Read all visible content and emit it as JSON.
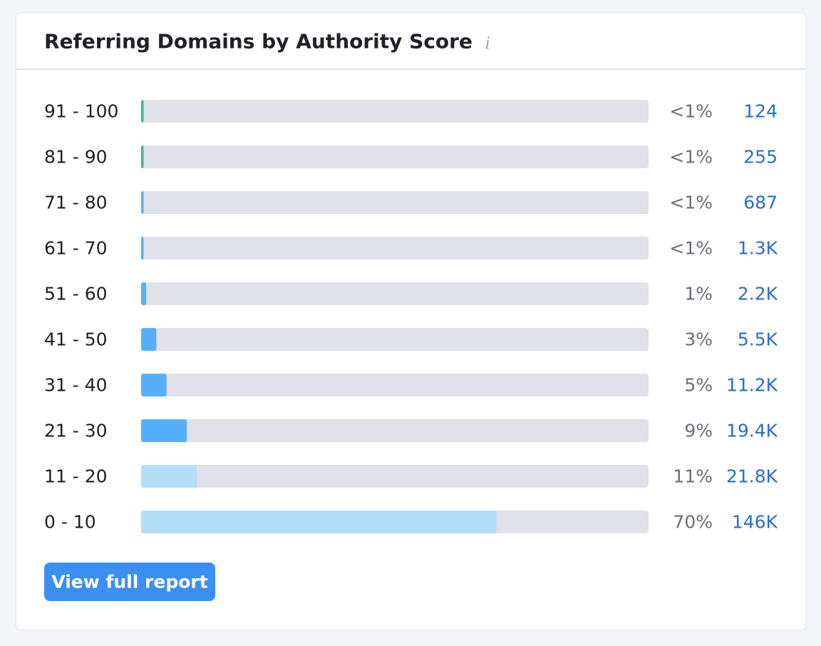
{
  "widget": {
    "title": "Referring Domains by Authority Score",
    "button": "View full report",
    "rows": [
      {
        "range": "91 - 100",
        "share": 0.5,
        "share_label": "<1%",
        "count": 124,
        "color": "#45b88b"
      },
      {
        "range": "81 - 90",
        "share": 0.5,
        "share_label": "<1%",
        "count": 255,
        "color": "#45b88b"
      },
      {
        "range": "71 - 80",
        "share": 0.5,
        "share_label": "<1%",
        "count": 687,
        "color": "#56b0f9"
      },
      {
        "range": "61 - 70",
        "share": 0.5,
        "share_label": "<1%",
        "count": 1300,
        "count_label": "1.3K",
        "color": "#56b0f9"
      },
      {
        "range": "51 - 60",
        "share": 1,
        "share_label": "1%",
        "count": 2200,
        "count_label": "2.2K",
        "color": "#56b0f9"
      },
      {
        "range": "41 - 50",
        "share": 3,
        "share_label": "3%",
        "count": 5500,
        "count_label": "5.5K",
        "color": "#56b0f9"
      },
      {
        "range": "31 - 40",
        "share": 5,
        "share_label": "5%",
        "count": 11200,
        "count_label": "11.2K",
        "color": "#56b0f9"
      },
      {
        "range": "21 - 30",
        "share": 9,
        "share_label": "9%",
        "count": 19400,
        "count_label": "19.4K",
        "color": "#56b0f9"
      },
      {
        "range": "11 - 20",
        "share": 11,
        "share_label": "11%",
        "count": 21800,
        "count_label": "21.8K",
        "color": "#b3dffa"
      },
      {
        "range": "0 - 10",
        "share": 70,
        "share_label": "70%",
        "count": 146000,
        "count_label": "146K",
        "color": "#b3dffa"
      }
    ],
    "share_max": 100
  }
}
